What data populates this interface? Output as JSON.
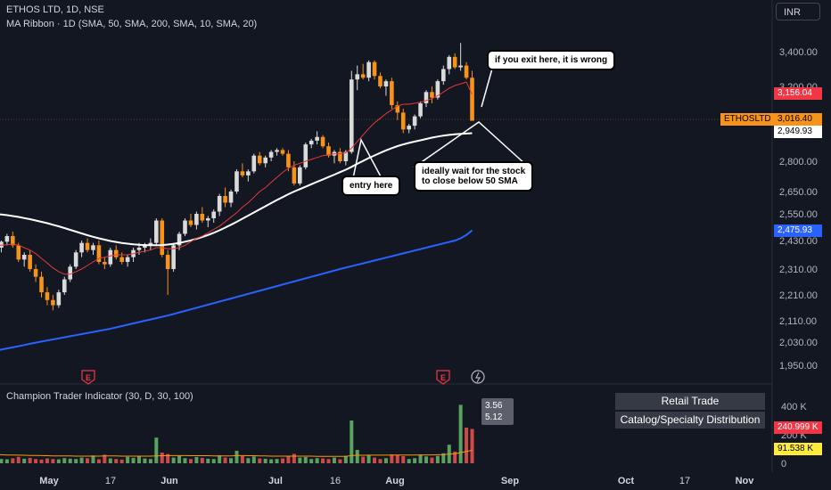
{
  "header": {
    "symbol_line": "ETHOS LTD, 1D, NSE",
    "ma_line": "MA Ribbon · 1D (SMA, 50, SMA, 200, SMA, 10, SMA, 20)",
    "currency": "INR"
  },
  "callouts": {
    "exit": "if you exit here, it is wrong",
    "entry": "entry here",
    "wait": "ideally wait for the stock\nto close below 50 SMA"
  },
  "price_tags": {
    "ticker": "ETHOSLTD",
    "sma10": "3,156.04",
    "last": "3,016.40",
    "sma50": "2,949.93",
    "sma200": "2,475.93"
  },
  "colors": {
    "up": "#dadada",
    "down": "#f7931a",
    "sma10": "#e53935",
    "sma50": "#ffffff",
    "sma200": "#2962ff",
    "vol_up": "#66bb6a",
    "vol_down": "#ef5350",
    "background": "#131722"
  },
  "icons": [
    "earnings-icon",
    "earnings-icon",
    "dividend-icon"
  ],
  "earnings_label": "E",
  "indicator": {
    "title": "Champion Trader Indicator (30, D, 30, 100)",
    "tooltip_top": "3.56",
    "tooltip_bottom": "5.12",
    "sector": "Retail Trade",
    "industry": "Catalog/Specialty Distribution",
    "tag_red": "240.999 K",
    "tag_yellow": "91.538 K"
  },
  "chart_data": {
    "type": "candlestick",
    "price_axis": {
      "ticks": [
        "3,400.00",
        "3,200.00",
        "2,800.00",
        "2,650.00",
        "2,550.00",
        "2,430.00",
        "2,310.00",
        "2,210.00",
        "2,110.00",
        "2,030.00",
        "1,950.00"
      ]
    },
    "volume_axis": {
      "ticks": [
        "400 K",
        "200 K",
        "0"
      ]
    },
    "date_labels": [
      "May",
      "17",
      "Jun",
      "Jul",
      "16",
      "Aug",
      "Sep",
      "Oct",
      "17",
      "Nov"
    ],
    "candles": [
      [
        2420,
        2440,
        2390,
        2400
      ],
      [
        2400,
        2430,
        2380,
        2425
      ],
      [
        2425,
        2460,
        2410,
        2450
      ],
      [
        2450,
        2470,
        2400,
        2410
      ],
      [
        2410,
        2420,
        2340,
        2350
      ],
      [
        2350,
        2380,
        2320,
        2370
      ],
      [
        2370,
        2390,
        2300,
        2310
      ],
      [
        2310,
        2330,
        2260,
        2280
      ],
      [
        2280,
        2300,
        2200,
        2220
      ],
      [
        2220,
        2240,
        2170,
        2190
      ],
      [
        2190,
        2210,
        2150,
        2170
      ],
      [
        2170,
        2230,
        2160,
        2220
      ],
      [
        2220,
        2280,
        2210,
        2270
      ],
      [
        2270,
        2330,
        2260,
        2320
      ],
      [
        2320,
        2390,
        2310,
        2380
      ],
      [
        2380,
        2430,
        2360,
        2420
      ],
      [
        2420,
        2440,
        2380,
        2390
      ],
      [
        2390,
        2420,
        2370,
        2410
      ],
      [
        2410,
        2430,
        2330,
        2340
      ],
      [
        2340,
        2360,
        2310,
        2330
      ],
      [
        2330,
        2400,
        2320,
        2390
      ],
      [
        2390,
        2410,
        2350,
        2360
      ],
      [
        2360,
        2380,
        2330,
        2340
      ],
      [
        2340,
        2370,
        2320,
        2360
      ],
      [
        2360,
        2400,
        2340,
        2390
      ],
      [
        2390,
        2420,
        2370,
        2400
      ],
      [
        2400,
        2420,
        2380,
        2410
      ],
      [
        2410,
        2440,
        2390,
        2420
      ],
      [
        2420,
        2530,
        2410,
        2520
      ],
      [
        2520,
        2530,
        2360,
        2370
      ],
      [
        2370,
        2390,
        2210,
        2310
      ],
      [
        2310,
        2420,
        2300,
        2410
      ],
      [
        2410,
        2470,
        2390,
        2460
      ],
      [
        2460,
        2530,
        2450,
        2520
      ],
      [
        2520,
        2550,
        2490,
        2500
      ],
      [
        2500,
        2560,
        2480,
        2550
      ],
      [
        2550,
        2580,
        2510,
        2520
      ],
      [
        2520,
        2540,
        2490,
        2530
      ],
      [
        2530,
        2570,
        2510,
        2560
      ],
      [
        2560,
        2640,
        2540,
        2630
      ],
      [
        2630,
        2670,
        2580,
        2600
      ],
      [
        2600,
        2660,
        2580,
        2650
      ],
      [
        2650,
        2760,
        2640,
        2750
      ],
      [
        2750,
        2790,
        2720,
        2730
      ],
      [
        2730,
        2760,
        2700,
        2750
      ],
      [
        2750,
        2840,
        2740,
        2830
      ],
      [
        2830,
        2850,
        2780,
        2790
      ],
      [
        2790,
        2830,
        2770,
        2820
      ],
      [
        2820,
        2860,
        2800,
        2850
      ],
      [
        2850,
        2870,
        2830,
        2860
      ],
      [
        2860,
        2870,
        2830,
        2840
      ],
      [
        2840,
        2860,
        2750,
        2770
      ],
      [
        2770,
        2800,
        2680,
        2690
      ],
      [
        2690,
        2780,
        2680,
        2770
      ],
      [
        2770,
        2900,
        2760,
        2890
      ],
      [
        2890,
        2920,
        2870,
        2910
      ],
      [
        2910,
        2960,
        2890,
        2930
      ],
      [
        2930,
        2940,
        2870,
        2880
      ],
      [
        2880,
        2900,
        2820,
        2830
      ],
      [
        2830,
        2860,
        2790,
        2850
      ],
      [
        2850,
        2870,
        2790,
        2800
      ],
      [
        2800,
        2860,
        2780,
        2850
      ],
      [
        2850,
        3290,
        2840,
        3240
      ],
      [
        3240,
        3320,
        3180,
        3270
      ],
      [
        3270,
        3330,
        3240,
        3250
      ],
      [
        3250,
        3350,
        3230,
        3340
      ],
      [
        3340,
        3350,
        3240,
        3260
      ],
      [
        3260,
        3280,
        3190,
        3200
      ],
      [
        3200,
        3240,
        3150,
        3230
      ],
      [
        3230,
        3250,
        3080,
        3100
      ],
      [
        3100,
        3120,
        3020,
        3060
      ],
      [
        3060,
        3080,
        2950,
        2970
      ],
      [
        2970,
        3000,
        2950,
        2990
      ],
      [
        2990,
        3050,
        2970,
        3040
      ],
      [
        3040,
        3120,
        3030,
        3110
      ],
      [
        3110,
        3180,
        3090,
        3170
      ],
      [
        3170,
        3200,
        3110,
        3140
      ],
      [
        3140,
        3240,
        3130,
        3230
      ],
      [
        3230,
        3320,
        3210,
        3300
      ],
      [
        3300,
        3380,
        3270,
        3370
      ],
      [
        3370,
        3390,
        3300,
        3310
      ],
      [
        3310,
        3450,
        3290,
        3320
      ],
      [
        3320,
        3340,
        3240,
        3250
      ],
      [
        3250,
        3290,
        3020,
        3016.4
      ]
    ],
    "sma10": [
      2410,
      2410,
      2412,
      2415,
      2410,
      2400,
      2390,
      2375,
      2355,
      2335,
      2315,
      2300,
      2290,
      2290,
      2300,
      2310,
      2325,
      2340,
      2355,
      2360,
      2365,
      2370,
      2370,
      2370,
      2375,
      2380,
      2385,
      2390,
      2400,
      2400,
      2395,
      2395,
      2400,
      2410,
      2425,
      2440,
      2450,
      2465,
      2480,
      2495,
      2515,
      2535,
      2555,
      2580,
      2600,
      2625,
      2650,
      2670,
      2695,
      2720,
      2745,
      2765,
      2780,
      2790,
      2800,
      2810,
      2820,
      2830,
      2835,
      2840,
      2840,
      2845,
      2870,
      2905,
      2940,
      2975,
      3005,
      3030,
      3055,
      3075,
      3095,
      3105,
      3105,
      3110,
      3115,
      3125,
      3135,
      3150,
      3170,
      3190,
      3205,
      3215,
      3225,
      3156.04
    ],
    "sma50": [
      2550,
      2547,
      2544,
      2540,
      2536,
      2531,
      2526,
      2520,
      2514,
      2508,
      2501,
      2494,
      2486,
      2478,
      2470,
      2462,
      2454,
      2447,
      2440,
      2434,
      2428,
      2424,
      2420,
      2417,
      2414,
      2412,
      2411,
      2410,
      2410,
      2411,
      2413,
      2416,
      2420,
      2425,
      2431,
      2438,
      2446,
      2455,
      2465,
      2476,
      2488,
      2501,
      2514,
      2528,
      2542,
      2556,
      2570,
      2584,
      2598,
      2612,
      2625,
      2638,
      2650,
      2662,
      2674,
      2686,
      2698,
      2710,
      2722,
      2734,
      2746,
      2758,
      2772,
      2787,
      2802,
      2817,
      2831,
      2845,
      2858,
      2870,
      2881,
      2890,
      2898,
      2905,
      2912,
      2919,
      2926,
      2932,
      2937,
      2941,
      2944,
      2946,
      2948,
      2949.93
    ],
    "sma200": [
      2000,
      2004,
      2008,
      2012,
      2016,
      2020,
      2024,
      2028,
      2032,
      2036,
      2040,
      2044,
      2048,
      2052,
      2056,
      2060,
      2064,
      2068,
      2072,
      2076,
      2080,
      2085,
      2090,
      2095,
      2100,
      2105,
      2110,
      2115,
      2120,
      2125,
      2130,
      2136,
      2142,
      2148,
      2154,
      2160,
      2166,
      2172,
      2178,
      2184,
      2190,
      2196,
      2202,
      2208,
      2214,
      2220,
      2226,
      2232,
      2238,
      2244,
      2250,
      2256,
      2262,
      2268,
      2274,
      2280,
      2286,
      2292,
      2298,
      2304,
      2310,
      2316,
      2322,
      2328,
      2334,
      2340,
      2346,
      2352,
      2358,
      2364,
      2370,
      2376,
      2382,
      2388,
      2394,
      2400,
      2406,
      2412,
      2418,
      2424,
      2430,
      2440,
      2455,
      2475.93
    ],
    "volumes": [
      40,
      30,
      28,
      35,
      45,
      32,
      38,
      30,
      26,
      34,
      30,
      28,
      36,
      32,
      30,
      40,
      35,
      55,
      28,
      60,
      34,
      30,
      26,
      45,
      38,
      50,
      34,
      30,
      180,
      75,
      65,
      40,
      52,
      36,
      30,
      44,
      38,
      32,
      30,
      56,
      40,
      36,
      88,
      50,
      36,
      48,
      34,
      32,
      28,
      30,
      34,
      52,
      66,
      40,
      44,
      30,
      36,
      34,
      30,
      40,
      28,
      52,
      300,
      94,
      46,
      58,
      40,
      30,
      36,
      62,
      60,
      50,
      30,
      36,
      60,
      48,
      40,
      52,
      70,
      130,
      82,
      410,
      250,
      240.999
    ],
    "sma50_volume": [
      60,
      60,
      58,
      58,
      57,
      56,
      55,
      55,
      54,
      53,
      52,
      52,
      51,
      51,
      50,
      50,
      50,
      50,
      50,
      51,
      51,
      51,
      50,
      50,
      50,
      50,
      50,
      50,
      52,
      53,
      54,
      54,
      54,
      54,
      53,
      53,
      53,
      53,
      52,
      52,
      52,
      52,
      54,
      54,
      53,
      53,
      52,
      51,
      50,
      50,
      50,
      50,
      50,
      50,
      50,
      50,
      49,
      49,
      48,
      48,
      48,
      48,
      54,
      56,
      56,
      57,
      57,
      57,
      57,
      58,
      58,
      58,
      58,
      58,
      59,
      59,
      59,
      60,
      61,
      64,
      66,
      75,
      83,
      91.538
    ]
  }
}
